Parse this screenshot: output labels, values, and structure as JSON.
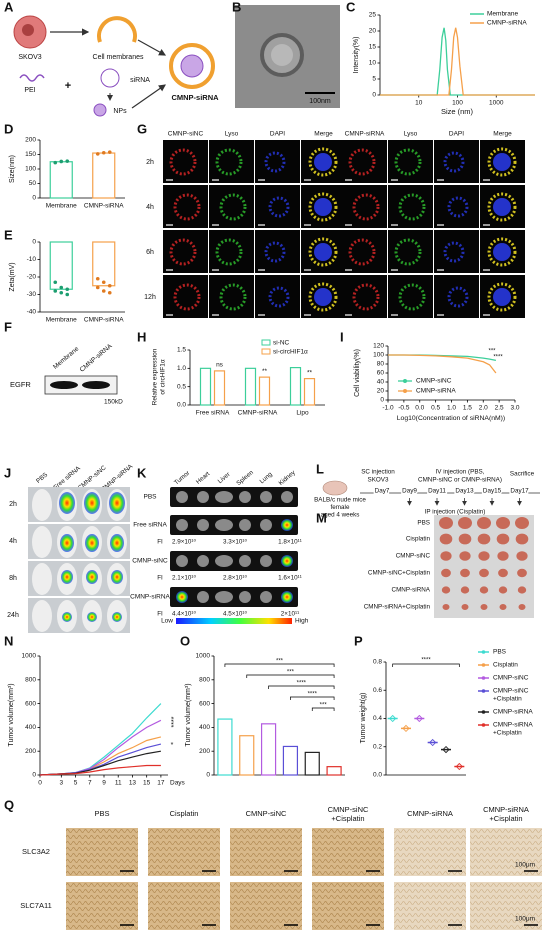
{
  "panel_labels": [
    "A",
    "B",
    "C",
    "D",
    "E",
    "F",
    "G",
    "H",
    "I",
    "J",
    "K",
    "L",
    "M",
    "N",
    "O",
    "P",
    "Q"
  ],
  "a": {
    "skov3": "SKOV3",
    "membranes": "Cell membranes",
    "pei": "PEI",
    "plus": "+",
    "sirna": "siRNA",
    "nps": "NPs",
    "product": "CMNP-siRNA"
  },
  "b": {
    "scale_bar": "100nm"
  },
  "c": {
    "y_label": "Intensity(%)",
    "x_label": "Size (nm)",
    "log_x": true,
    "xlim": [
      1,
      10000
    ],
    "xticks": [
      10,
      100,
      1000
    ],
    "ylim": [
      0,
      25
    ],
    "yticks": [
      0,
      5,
      10,
      15,
      20,
      25
    ],
    "series": [
      {
        "name": "Membrane",
        "color": "#3ccf9a",
        "x": [
          1,
          30,
          35,
          40,
          45,
          50,
          55,
          65,
          10000
        ],
        "values": [
          0,
          0,
          8,
          18,
          21,
          17,
          8,
          0,
          0
        ]
      },
      {
        "name": "CMNP-siRNA",
        "color": "#f5a04a",
        "x": [
          1,
          60,
          70,
          80,
          90,
          100,
          115,
          140,
          10000
        ],
        "values": [
          0,
          0,
          8,
          18,
          21,
          18,
          9,
          0,
          0
        ]
      }
    ]
  },
  "d": {
    "y_label": "Size(nm)",
    "categories": [
      "Membrane",
      "CMNP-siRNA"
    ],
    "colors": [
      "#3ccf9a",
      "#f5a04a"
    ],
    "values": [
      125,
      155
    ],
    "points": [
      [
        122,
        126,
        127
      ],
      [
        152,
        156,
        158
      ]
    ],
    "ylim": [
      0,
      200
    ],
    "yticks": [
      0,
      50,
      100,
      150,
      200
    ]
  },
  "e": {
    "y_label": "Zeta(mV)",
    "categories": [
      "Membrane",
      "CMNP-siRNA"
    ],
    "colors": [
      "#3ccf9a",
      "#f5a04a"
    ],
    "values": [
      -27,
      -25
    ],
    "points": [
      [
        -23,
        -26,
        -27,
        -28,
        -29,
        -30
      ],
      [
        -21,
        -23,
        -25,
        -26,
        -28,
        -29
      ]
    ],
    "ylim": [
      -40,
      0
    ],
    "yticks": [
      0,
      -10,
      -20,
      -30,
      -40
    ]
  },
  "f": {
    "lanes": [
      "Membrane",
      "CMNP-siRNA"
    ],
    "protein": "EGFR",
    "marker": "150kD"
  },
  "g": {
    "columns": [
      "CMNP-siNC",
      "Lyso",
      "DAPI",
      "Merge",
      "CMNP-siRNA",
      "Lyso",
      "DAPI",
      "Merge"
    ],
    "rows": [
      "2h",
      "4h",
      "6h",
      "12h"
    ]
  },
  "h": {
    "y_label": [
      "Relative expression",
      "of circHIF1α"
    ],
    "categories": [
      "Free siRNA",
      "CMNP-siRNA",
      "Lipo"
    ],
    "series": [
      {
        "name": "si-NC",
        "color": "#3ccf9a",
        "values": [
          1.0,
          1.0,
          1.02
        ]
      },
      {
        "name": "si-circHIF1α",
        "color": "#f5a04a",
        "values": [
          0.93,
          0.76,
          0.72
        ]
      }
    ],
    "ylim": [
      0,
      1.5
    ],
    "yticks": [
      {
        "value": 0,
        "label": "0.0"
      },
      {
        "value": 0.5,
        "label": "0.5"
      },
      {
        "value": 1,
        "label": "1.0"
      },
      {
        "value": 1.5,
        "label": "1.5"
      }
    ],
    "annotations": [
      "ns",
      "**",
      "**"
    ]
  },
  "i": {
    "y_label": "Cell viability(%)",
    "x_label": "Log10(Concentration of siRNA(nM))",
    "xlim": [
      -1,
      3
    ],
    "xticks": [
      {
        "value": -1,
        "label": "-1.0"
      },
      {
        "value": -0.5,
        "label": "-0.5"
      },
      {
        "value": 0,
        "label": "0.0"
      },
      {
        "value": 0.5,
        "label": "0.5"
      },
      {
        "value": 1,
        "label": "1.0"
      },
      {
        "value": 1.5,
        "label": "1.5"
      },
      {
        "value": 2,
        "label": "2.0"
      },
      {
        "value": 2.5,
        "label": "2.5"
      },
      {
        "value": 3,
        "label": "3.0"
      }
    ],
    "ylim": [
      0,
      120
    ],
    "yticks": [
      0,
      20,
      40,
      60,
      80,
      100,
      120
    ],
    "x": [
      -1,
      -0.5,
      0,
      0.5,
      1,
      1.5,
      2,
      2.2,
      2.4
    ],
    "series": [
      {
        "name": "CMNP-siNC",
        "color": "#3ccf9a",
        "values": [
          100,
          100,
          100,
          99,
          98,
          97,
          93,
          91,
          88
        ]
      },
      {
        "name": "CMNP-siRNA",
        "color": "#f5a04a",
        "values": [
          100,
          100,
          99,
          98,
          96,
          93,
          85,
          78,
          60
        ]
      }
    ],
    "annotations": [
      "***",
      "****"
    ]
  },
  "j": {
    "columns": [
      "PBS",
      "Free siRNA",
      "CMNP-siNC",
      "CMNP-siRNA"
    ],
    "rows": [
      "2h",
      "4h",
      "8h",
      "24h"
    ]
  },
  "k": {
    "columns": [
      "Tumor",
      "Heart",
      "Liver",
      "Spleen",
      "Lung",
      "Kidney"
    ],
    "rows": [
      "PBS",
      "Free siRNA",
      "CMNP-siNC",
      "CMNP-siRNA"
    ],
    "fi_label": "FI",
    "fi": [
      [
        "2.9×10¹⁰",
        "3.3×10¹⁰",
        "1.8×10¹¹"
      ],
      [
        "2.1×10¹⁰",
        "2.8×10¹⁰",
        "1.6×10¹¹"
      ],
      [
        "4.4×10¹⁰",
        "4.5×10¹⁰",
        "2×10¹¹"
      ]
    ],
    "scale": [
      "Low",
      "High"
    ]
  },
  "l": {
    "mice": [
      "BALB/c nude mice",
      "female",
      "aged 4 weeks"
    ],
    "sc": [
      "SC injection",
      "SKOV3"
    ],
    "iv": [
      "IV injection (PBS,",
      "CMNP-siNC or CMNP-siRNA)"
    ],
    "days": [
      "Day7",
      "Day9",
      "Day11",
      "Day13",
      "Day15",
      "Day17"
    ],
    "ip": "IP injection (Cisplatin)",
    "end": "Sacrifice"
  },
  "m": {
    "groups": [
      "PBS",
      "Cisplatin",
      "CMNP-siNC",
      "CMNP-siNC+Cisplatin",
      "CMNP-siRNA",
      "CMNP-siRNA+Cisplatin"
    ]
  },
  "groups": [
    {
      "name": [
        "PBS"
      ],
      "color": "#3ddbd0"
    },
    {
      "name": [
        "Cisplatin"
      ],
      "color": "#f5a04a"
    },
    {
      "name": [
        "CMNP-siNC"
      ],
      "color": "#b35be0"
    },
    {
      "name": [
        "CMNP-siNC",
        "+Cisplatin"
      ],
      "color": "#5a4fd6"
    },
    {
      "name": [
        "CMNP-siRNA"
      ],
      "color": "#222222"
    },
    {
      "name": [
        "CMNP-siRNA",
        "+Cisplatin"
      ],
      "color": "#e0302a"
    }
  ],
  "n": {
    "y_label": "Tumor volume(mm³)",
    "x_label": "Days",
    "x": [
      0,
      3,
      5,
      7,
      9,
      11,
      13,
      15,
      17
    ],
    "xlim": [
      0,
      18
    ],
    "xticks": [
      0,
      3,
      5,
      7,
      9,
      11,
      13,
      15,
      17
    ],
    "ylim": [
      0,
      1000
    ],
    "yticks": [
      0,
      200,
      400,
      600,
      800,
      1000
    ],
    "series": [
      {
        "values": [
          0,
          10,
          20,
          60,
          150,
          250,
          350,
          480,
          600
        ]
      },
      {
        "values": [
          0,
          10,
          18,
          50,
          110,
          180,
          230,
          290,
          320
        ]
      },
      {
        "values": [
          0,
          10,
          20,
          55,
          130,
          230,
          320,
          400,
          460
        ]
      },
      {
        "values": [
          0,
          10,
          18,
          45,
          90,
          150,
          190,
          230,
          260
        ]
      },
      {
        "values": [
          0,
          10,
          15,
          40,
          80,
          120,
          150,
          180,
          200
        ]
      },
      {
        "values": [
          0,
          8,
          12,
          25,
          45,
          60,
          70,
          80,
          80
        ]
      }
    ],
    "annotations": [
      "*",
      "****"
    ]
  },
  "o": {
    "y_label": "Tumor volume(mm³)",
    "values": [
      470,
      330,
      430,
      240,
      190,
      70
    ],
    "ylim": [
      0,
      1000
    ],
    "yticks": [
      0,
      200,
      400,
      600,
      800,
      1000
    ],
    "annotations": [
      "***",
      "***",
      "****",
      "****",
      "***"
    ]
  },
  "p": {
    "y_label": "Tumor weight(g)",
    "values": [
      0.4,
      0.33,
      0.4,
      0.23,
      0.18,
      0.06
    ],
    "ylim": [
      0,
      0.8
    ],
    "yticks": [
      {
        "value": 0,
        "label": "0.0"
      },
      {
        "value": 0.2,
        "label": "0.2"
      },
      {
        "value": 0.4,
        "label": "0.4"
      },
      {
        "value": 0.6,
        "label": "0.6"
      },
      {
        "value": 0.8,
        "label": "0.8"
      }
    ],
    "annotations": [
      "****"
    ]
  },
  "q": {
    "columns": [
      [
        "PBS"
      ],
      [
        "Cisplatin"
      ],
      [
        "CMNP-siNC"
      ],
      [
        "CMNP-siNC",
        "+Cisplatin"
      ],
      [
        "CMNP-siRNA"
      ],
      [
        "CMNP-siRNA",
        "+Cisplatin"
      ]
    ],
    "rows": [
      "SLC3A2",
      "SLC7A11"
    ],
    "scale_bar": "100μm"
  }
}
